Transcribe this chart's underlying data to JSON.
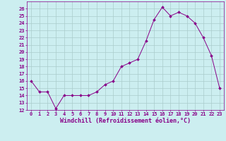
{
  "hours": [
    0,
    1,
    2,
    3,
    4,
    5,
    6,
    7,
    8,
    9,
    10,
    11,
    12,
    13,
    14,
    15,
    16,
    17,
    18,
    19,
    20,
    21,
    22,
    23
  ],
  "values": [
    16,
    14.5,
    14.5,
    12.2,
    14,
    14,
    14,
    14,
    14.5,
    15.5,
    16,
    18,
    18.5,
    19,
    21.5,
    24.5,
    26.2,
    25,
    25.5,
    25,
    24,
    22,
    19.5,
    15
  ],
  "line_color": "#880088",
  "marker": "D",
  "marker_size": 2.0,
  "bg_color": "#cceef0",
  "grid_color": "#aacccc",
  "xlabel": "Windchill (Refroidissement éolien,°C)",
  "ylabel": "",
  "ylim": [
    12,
    27
  ],
  "xlim_min": -0.5,
  "xlim_max": 23.5,
  "yticks": [
    12,
    13,
    14,
    15,
    16,
    17,
    18,
    19,
    20,
    21,
    22,
    23,
    24,
    25,
    26
  ],
  "xticks": [
    0,
    1,
    2,
    3,
    4,
    5,
    6,
    7,
    8,
    9,
    10,
    11,
    12,
    13,
    14,
    15,
    16,
    17,
    18,
    19,
    20,
    21,
    22,
    23
  ],
  "tick_fontsize": 5.0,
  "xlabel_fontsize": 6.0,
  "axis_color": "#880088",
  "linewidth": 0.7
}
